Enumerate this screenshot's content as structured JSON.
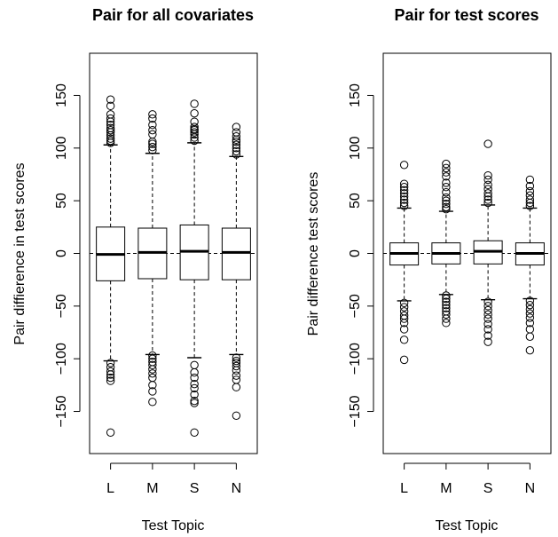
{
  "chart_data": [
    {
      "type": "boxplot",
      "title": "Pair for all covariates",
      "xlabel": "Test Topic",
      "ylabel": "Pair diffierence in test scores",
      "ylim": [
        -190,
        190
      ],
      "yticks": [
        -150,
        -100,
        -50,
        0,
        50,
        100,
        150
      ],
      "reference_line": 0,
      "categories": [
        "L",
        "M",
        "S",
        "N"
      ],
      "boxes": [
        {
          "category": "L",
          "whisker_low": -102,
          "q1": -26,
          "median": -1,
          "q3": 25,
          "whisker_high": 103,
          "outliers_high": [
            105,
            107,
            109,
            112,
            115,
            117,
            119,
            122,
            125,
            128,
            132,
            140,
            146
          ],
          "outliers_low": [
            -104,
            -108,
            -112,
            -115,
            -118,
            -121,
            -170
          ]
        },
        {
          "category": "M",
          "whisker_low": -96,
          "q1": -24,
          "median": 1,
          "q3": 24,
          "whisker_high": 95,
          "outliers_high": [
            98,
            101,
            104,
            106,
            113,
            117,
            122,
            128,
            132
          ],
          "outliers_low": [
            -97,
            -100,
            -103,
            -106,
            -110,
            -114,
            -118,
            -125,
            -131,
            -141
          ]
        },
        {
          "category": "S",
          "whisker_low": -99,
          "q1": -25,
          "median": 2,
          "q3": 27,
          "whisker_high": 105,
          "outliers_high": [
            107,
            110,
            113,
            115,
            117,
            118,
            120,
            125,
            133,
            142
          ],
          "outliers_low": [
            -106,
            -113,
            -118,
            -124,
            -128,
            -134,
            -140,
            -142,
            -170
          ]
        },
        {
          "category": "N",
          "whisker_low": -96,
          "q1": -25,
          "median": 1,
          "q3": 24,
          "whisker_high": 92,
          "outliers_high": [
            94,
            97,
            100,
            103,
            106,
            108,
            111,
            115,
            120
          ],
          "outliers_low": [
            -99,
            -102,
            -104,
            -107,
            -111,
            -116,
            -120,
            -127,
            -154
          ]
        }
      ]
    },
    {
      "type": "boxplot",
      "title": "Pair for test scores",
      "xlabel": "Test Topic",
      "ylabel": "Pair difference test scores",
      "ylim": [
        -190,
        190
      ],
      "yticks": [
        -150,
        -100,
        -50,
        0,
        50,
        100,
        150
      ],
      "reference_line": 0,
      "categories": [
        "L",
        "M",
        "S",
        "N"
      ],
      "boxes": [
        {
          "category": "L",
          "whisker_low": -45,
          "q1": -11,
          "median": 0,
          "q3": 10,
          "whisker_high": 43,
          "outliers_high": [
            45,
            48,
            51,
            54,
            57,
            60,
            63,
            66,
            84
          ],
          "outliers_low": [
            -47,
            -51,
            -55,
            -59,
            -62,
            -66,
            -72,
            -82,
            -101
          ]
        },
        {
          "category": "M",
          "whisker_low": -39,
          "q1": -10,
          "median": 0,
          "q3": 10,
          "whisker_high": 40,
          "outliers_high": [
            42,
            44,
            47,
            50,
            53,
            58,
            63,
            67,
            73,
            77,
            81,
            85
          ],
          "outliers_low": [
            -40,
            -43,
            -46,
            -49,
            -52,
            -55,
            -58,
            -62,
            -66
          ]
        },
        {
          "category": "S",
          "whisker_low": -44,
          "q1": -10,
          "median": 2,
          "q3": 12,
          "whisker_high": 46,
          "outliers_high": [
            48,
            51,
            54,
            57,
            61,
            65,
            70,
            74,
            104
          ],
          "outliers_low": [
            -46,
            -50,
            -54,
            -58,
            -62,
            -67,
            -72,
            -78,
            -84
          ]
        },
        {
          "category": "N",
          "whisker_low": -43,
          "q1": -11,
          "median": 0,
          "q3": 10,
          "whisker_high": 43,
          "outliers_high": [
            45,
            48,
            51,
            55,
            59,
            64,
            70
          ],
          "outliers_low": [
            -45,
            -49,
            -53,
            -57,
            -61,
            -66,
            -72,
            -79,
            -92
          ]
        }
      ]
    }
  ]
}
